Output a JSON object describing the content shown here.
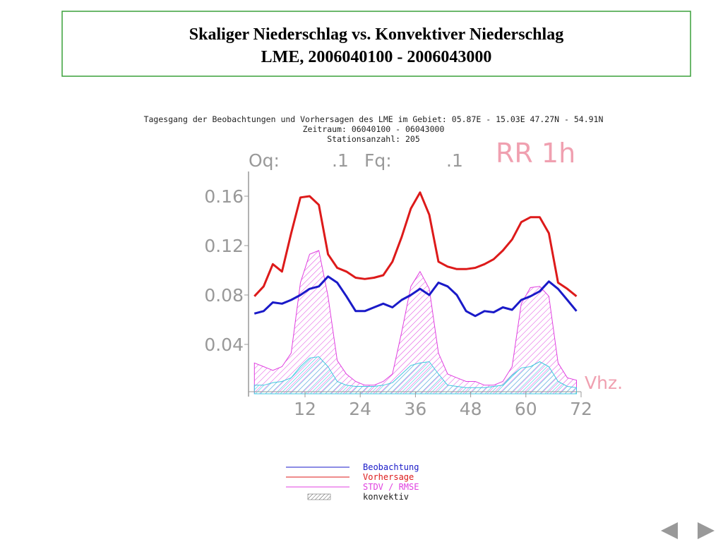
{
  "slide": {
    "title": [
      "Skaliger Niederschlag vs. Konvektiver Niederschlag",
      "LME, 2006040100 - 2006043000"
    ]
  },
  "chart_data": {
    "type": "line",
    "header": [
      "Tagesgang der Beobachtungen und Vorhersagen des LME im Gebiet: 05.87E - 15.03E 47.27N - 54.91N",
      "Zeitraum: 06040100 - 06043000",
      "Stationsanzahl: 205"
    ],
    "labels": {
      "oq": "Oq:",
      "oq_value": ".1",
      "fq": "Fq:",
      "fq_value": ".1",
      "variable": "RR 1h",
      "x_label": "Vhz."
    },
    "x": [
      1,
      3,
      5,
      7,
      9,
      11,
      13,
      15,
      17,
      19,
      21,
      23,
      25,
      27,
      29,
      31,
      33,
      35,
      37,
      39,
      41,
      43,
      45,
      47,
      49,
      51,
      53,
      55,
      57,
      59,
      61,
      63,
      65,
      67,
      69,
      71
    ],
    "xlim": [
      0,
      72
    ],
    "xticks": [
      12,
      24,
      36,
      48,
      60,
      72
    ],
    "ylim": [
      0,
      0.18
    ],
    "yticks": [
      0.04,
      0.08,
      0.12,
      0.16
    ],
    "series": [
      {
        "name": "Beobachtung",
        "color": "#1a1ac8",
        "kind": "line",
        "values": [
          0.065,
          0.067,
          0.074,
          0.073,
          0.076,
          0.08,
          0.085,
          0.087,
          0.095,
          0.09,
          0.079,
          0.067,
          0.067,
          0.07,
          0.073,
          0.07,
          0.076,
          0.08,
          0.085,
          0.08,
          0.09,
          0.087,
          0.08,
          0.067,
          0.063,
          0.067,
          0.066,
          0.07,
          0.068,
          0.076,
          0.079,
          0.083,
          0.091,
          0.085,
          0.076,
          0.067
        ]
      },
      {
        "name": "Vorhersage",
        "color": "#dd1a1a",
        "kind": "line",
        "values": [
          0.079,
          0.087,
          0.105,
          0.099,
          0.13,
          0.159,
          0.16,
          0.153,
          0.113,
          0.102,
          0.099,
          0.094,
          0.093,
          0.094,
          0.096,
          0.107,
          0.127,
          0.15,
          0.163,
          0.145,
          0.107,
          0.103,
          0.101,
          0.101,
          0.102,
          0.105,
          0.109,
          0.116,
          0.125,
          0.139,
          0.143,
          0.143,
          0.13,
          0.09,
          0.085,
          0.079
        ]
      },
      {
        "name": "STDV / RMSE",
        "color": "#e040e0",
        "kind": "area",
        "values": [
          0.025,
          0.022,
          0.019,
          0.022,
          0.033,
          0.09,
          0.113,
          0.116,
          0.079,
          0.027,
          0.016,
          0.01,
          0.007,
          0.007,
          0.01,
          0.016,
          0.05,
          0.087,
          0.099,
          0.085,
          0.033,
          0.016,
          0.013,
          0.01,
          0.01,
          0.007,
          0.007,
          0.01,
          0.022,
          0.073,
          0.086,
          0.087,
          0.079,
          0.025,
          0.013,
          0.011
        ]
      },
      {
        "name": "konvektiv",
        "color": "#40c8e0",
        "kind": "area",
        "values": [
          0.007,
          0.007,
          0.009,
          0.01,
          0.013,
          0.022,
          0.029,
          0.03,
          0.022,
          0.01,
          0.007,
          0.006,
          0.006,
          0.006,
          0.007,
          0.009,
          0.016,
          0.023,
          0.025,
          0.026,
          0.016,
          0.007,
          0.006,
          0.005,
          0.005,
          0.005,
          0.006,
          0.007,
          0.015,
          0.021,
          0.022,
          0.026,
          0.022,
          0.01,
          0.006,
          0.005
        ]
      }
    ]
  }
}
